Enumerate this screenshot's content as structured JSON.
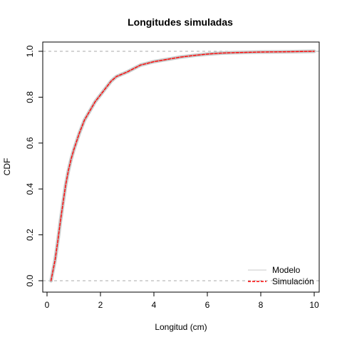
{
  "chart_data": {
    "type": "line",
    "title": "Longitudes simuladas",
    "xlabel": "Longitud (cm)",
    "ylabel": "CDF",
    "xlim": [
      0,
      10
    ],
    "ylim": [
      0,
      1
    ],
    "x_ticks": [
      0,
      2,
      4,
      6,
      8,
      10
    ],
    "y_ticks": [
      0.0,
      0.2,
      0.4,
      0.6,
      0.8,
      1.0
    ],
    "x_tick_labels": [
      "0",
      "2",
      "4",
      "6",
      "8",
      "10"
    ],
    "y_tick_labels": [
      "0.0",
      "0.2",
      "0.4",
      "0.6",
      "0.8",
      "1.0"
    ],
    "reference_lines_y": [
      0,
      1
    ],
    "grid": false,
    "legend_position": "bottom-right",
    "series": [
      {
        "name": "Modelo",
        "color": "#c8c8c8",
        "style": "solid",
        "x": [
          0.15,
          0.2,
          0.3,
          0.4,
          0.5,
          0.6,
          0.7,
          0.8,
          0.9,
          1.0,
          1.2,
          1.4,
          1.6,
          1.8,
          2.0,
          2.2,
          2.4,
          2.6,
          2.8,
          3.0,
          3.5,
          4.0,
          4.5,
          5.0,
          5.5,
          6.0,
          6.5,
          7.0,
          8.0,
          9.0,
          10.0
        ],
        "y": [
          0.0,
          0.03,
          0.09,
          0.17,
          0.26,
          0.34,
          0.42,
          0.48,
          0.53,
          0.57,
          0.64,
          0.7,
          0.74,
          0.78,
          0.81,
          0.84,
          0.87,
          0.89,
          0.9,
          0.91,
          0.94,
          0.955,
          0.965,
          0.975,
          0.982,
          0.988,
          0.992,
          0.994,
          0.997,
          0.998,
          1.0
        ]
      },
      {
        "name": "Simulación",
        "color": "#ff0000",
        "style": "dashed",
        "x": [
          0.15,
          0.2,
          0.3,
          0.4,
          0.5,
          0.6,
          0.7,
          0.8,
          0.9,
          1.0,
          1.2,
          1.4,
          1.6,
          1.8,
          2.0,
          2.2,
          2.4,
          2.6,
          2.8,
          3.0,
          3.5,
          4.0,
          4.5,
          5.0,
          5.5,
          6.0,
          6.5,
          7.0,
          8.0,
          9.0,
          10.0
        ],
        "y": [
          0.0,
          0.03,
          0.09,
          0.17,
          0.26,
          0.34,
          0.42,
          0.48,
          0.53,
          0.57,
          0.64,
          0.7,
          0.74,
          0.78,
          0.81,
          0.84,
          0.87,
          0.89,
          0.9,
          0.91,
          0.94,
          0.955,
          0.965,
          0.975,
          0.982,
          0.988,
          0.992,
          0.994,
          0.997,
          0.998,
          1.0
        ]
      }
    ]
  }
}
